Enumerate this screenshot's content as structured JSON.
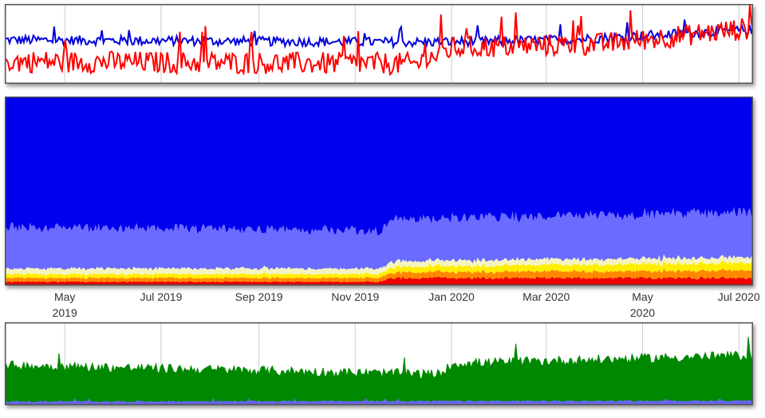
{
  "chart_data": [
    {
      "type": "line",
      "panel": "top",
      "title": "",
      "xlim": [
        "2019-03-24",
        "2020-07-10"
      ],
      "ylim": [
        0,
        100
      ],
      "grid": true,
      "legend": "none",
      "series": [
        {
          "color": "#0000dd",
          "level": 55,
          "noise": 6,
          "trend": [
            [
              0,
              55
            ],
            [
              0.55,
              52
            ],
            [
              0.75,
              55
            ],
            [
              1.0,
              68
            ]
          ]
        },
        {
          "color": "#ff0000",
          "level": 28,
          "noise": 14,
          "trend": [
            [
              0,
              28
            ],
            [
              0.55,
              25
            ],
            [
              0.6,
              45
            ],
            [
              0.8,
              50
            ],
            [
              1.0,
              70
            ]
          ]
        }
      ]
    },
    {
      "type": "area",
      "panel": "middle",
      "title": "",
      "xlim": [
        "2019-03-24",
        "2020-07-10"
      ],
      "ylim": [
        0,
        100
      ],
      "stacked": true,
      "grid": true,
      "series": [
        {
          "color": "#ee0000",
          "share": [
            [
              0,
              2
            ],
            [
              0.5,
              2
            ],
            [
              0.52,
              4
            ],
            [
              1.0,
              4
            ]
          ]
        },
        {
          "color": "#ff8800",
          "share": [
            [
              0,
              2
            ],
            [
              0.5,
              2
            ],
            [
              0.52,
              3
            ],
            [
              1.0,
              4
            ]
          ]
        },
        {
          "color": "#ffee00",
          "share": [
            [
              0,
              2
            ],
            [
              0.5,
              2
            ],
            [
              0.52,
              3
            ],
            [
              1.0,
              4
            ]
          ]
        },
        {
          "color": "#f4f4c0",
          "share": [
            [
              0,
              3
            ],
            [
              0.5,
              3
            ],
            [
              0.52,
              3
            ],
            [
              1.0,
              3
            ]
          ]
        },
        {
          "color": "#6b6bff",
          "share": [
            [
              0,
              22
            ],
            [
              0.5,
              20
            ],
            [
              0.52,
              22
            ],
            [
              1.0,
              24
            ]
          ]
        },
        {
          "color": "#0000ee",
          "share": [
            [
              0,
              69
            ],
            [
              0.5,
              71
            ],
            [
              0.52,
              65
            ],
            [
              1.0,
              61
            ]
          ]
        }
      ]
    },
    {
      "type": "area",
      "panel": "bottom",
      "title": "",
      "xlim": [
        "2019-03-24",
        "2020-07-10"
      ],
      "ylim": [
        0,
        100
      ],
      "grid": true,
      "series": [
        {
          "color": "#008800",
          "level": 48,
          "noise": 6,
          "trend": [
            [
              0,
              48
            ],
            [
              0.58,
              37
            ],
            [
              0.6,
              50
            ],
            [
              1.0,
              60
            ]
          ]
        },
        {
          "color": "#6666ee",
          "level": 4,
          "noise": 1,
          "trend": [
            [
              0,
              4
            ],
            [
              1.0,
              5
            ]
          ]
        }
      ]
    }
  ],
  "x_axis": {
    "ticks": [
      {
        "date": "2019-05-01",
        "label": "May",
        "year": "2019"
      },
      {
        "date": "2019-07-01",
        "label": "Jul 2019",
        "year": ""
      },
      {
        "date": "2019-09-01",
        "label": "Sep 2019",
        "year": ""
      },
      {
        "date": "2019-11-01",
        "label": "Nov 2019",
        "year": ""
      },
      {
        "date": "2020-01-01",
        "label": "Jan 2020",
        "year": ""
      },
      {
        "date": "2020-03-01",
        "label": "Mar 2020",
        "year": ""
      },
      {
        "date": "2020-05-01",
        "label": "May",
        "year": "2020"
      },
      {
        "date": "2020-07-01",
        "label": "Jul 2020",
        "year": ""
      }
    ]
  }
}
